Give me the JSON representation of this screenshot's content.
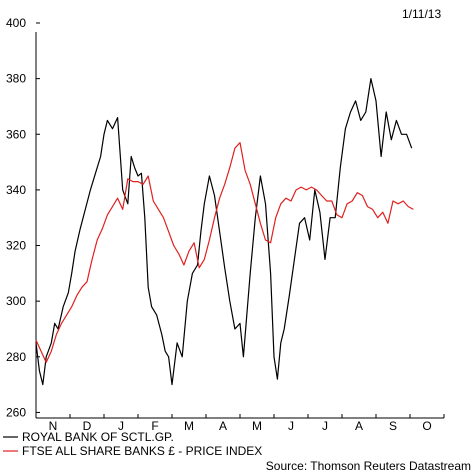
{
  "chart_data": {
    "type": "line",
    "date_label": "1/11/13",
    "x_categories": [
      "N",
      "D",
      "J",
      "F",
      "M",
      "A",
      "M",
      "J",
      "J",
      "A",
      "S",
      "O"
    ],
    "y_ticks": [
      260,
      280,
      300,
      320,
      340,
      360,
      380,
      400
    ],
    "ylim": [
      258,
      400
    ],
    "grid": false,
    "legend_position": "bottom-left",
    "source": "Source: Thomson Reuters Datastream",
    "series": [
      {
        "name": "ROYAL BANK OF SCTL.GP.",
        "color": "#000000",
        "x": [
          0.0,
          0.1,
          0.2,
          0.3,
          0.45,
          0.55,
          0.65,
          0.8,
          0.95,
          1.05,
          1.15,
          1.3,
          1.45,
          1.6,
          1.75,
          1.9,
          2.0,
          2.1,
          2.25,
          2.4,
          2.55,
          2.7,
          2.8,
          2.9,
          3.0,
          3.1,
          3.2,
          3.3,
          3.4,
          3.55,
          3.7,
          3.8,
          3.9,
          4.0,
          4.15,
          4.3,
          4.45,
          4.6,
          4.75,
          4.85,
          4.95,
          5.1,
          5.25,
          5.4,
          5.55,
          5.7,
          5.85,
          6.0,
          6.1,
          6.2,
          6.3,
          6.45,
          6.6,
          6.75,
          6.9,
          7.0,
          7.1,
          7.2,
          7.3,
          7.45,
          7.6,
          7.75,
          7.9,
          8.05,
          8.2,
          8.35,
          8.5,
          8.65,
          8.8,
          8.95,
          9.1,
          9.25,
          9.4,
          9.55,
          9.7,
          9.85,
          10.0,
          10.15,
          10.3,
          10.45,
          10.6,
          10.75,
          10.9,
          11.05
        ],
        "values": [
          285,
          275,
          270,
          280,
          285,
          292,
          290,
          298,
          303,
          310,
          318,
          326,
          333,
          340,
          346,
          352,
          360,
          365,
          362,
          366,
          340,
          335,
          352,
          348,
          345,
          346,
          330,
          305,
          298,
          295,
          288,
          282,
          280,
          270,
          285,
          280,
          300,
          310,
          313,
          325,
          335,
          345,
          338,
          325,
          312,
          300,
          290,
          292,
          280,
          295,
          310,
          330,
          345,
          335,
          310,
          280,
          272,
          285,
          290,
          302,
          315,
          328,
          330,
          322,
          340,
          332,
          315,
          330,
          330,
          348,
          362,
          368,
          372,
          365,
          368,
          380,
          372,
          352,
          368,
          358,
          365,
          360,
          360,
          355
        ]
      },
      {
        "name": "FTSE ALL SHARE BANKS £ - PRICE INDEX",
        "color": "#e0201e",
        "x": [
          0.0,
          0.15,
          0.3,
          0.45,
          0.6,
          0.75,
          0.9,
          1.05,
          1.2,
          1.35,
          1.5,
          1.65,
          1.8,
          1.95,
          2.1,
          2.25,
          2.4,
          2.55,
          2.7,
          2.85,
          3.0,
          3.15,
          3.3,
          3.45,
          3.6,
          3.75,
          3.9,
          4.05,
          4.2,
          4.35,
          4.5,
          4.65,
          4.8,
          4.95,
          5.1,
          5.25,
          5.4,
          5.55,
          5.7,
          5.85,
          6.0,
          6.15,
          6.3,
          6.45,
          6.6,
          6.75,
          6.9,
          7.05,
          7.2,
          7.35,
          7.5,
          7.65,
          7.8,
          7.95,
          8.1,
          8.25,
          8.4,
          8.55,
          8.7,
          8.85,
          9.0,
          9.15,
          9.3,
          9.45,
          9.6,
          9.75,
          9.9,
          10.05,
          10.2,
          10.35,
          10.5,
          10.65,
          10.8,
          10.95,
          11.1
        ],
        "values": [
          286,
          282,
          278,
          282,
          288,
          292,
          295,
          298,
          302,
          305,
          307,
          315,
          322,
          326,
          331,
          334,
          337,
          333,
          344,
          343,
          343,
          342,
          345,
          336,
          333,
          330,
          325,
          320,
          317,
          313,
          318,
          321,
          312,
          315,
          322,
          330,
          337,
          342,
          348,
          355,
          357,
          347,
          342,
          335,
          328,
          322,
          321,
          330,
          335,
          337,
          336,
          340,
          341,
          340,
          341,
          340,
          338,
          336,
          336,
          331,
          330,
          335,
          336,
          339,
          338,
          334,
          333,
          330,
          332,
          328,
          336,
          335,
          336,
          334,
          333
        ]
      }
    ]
  }
}
